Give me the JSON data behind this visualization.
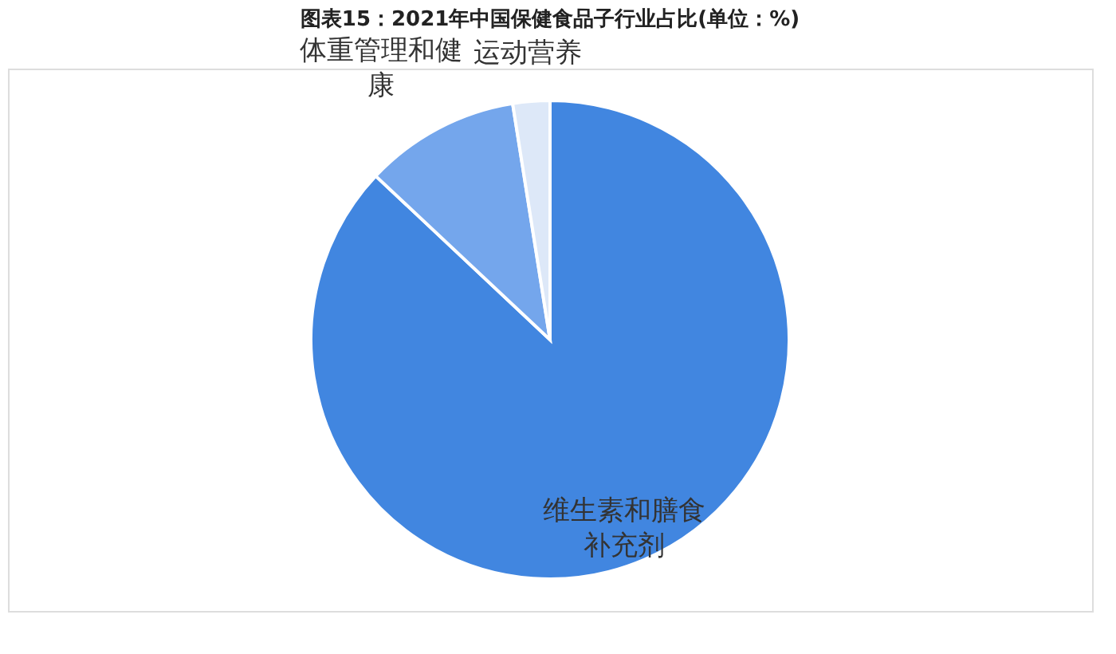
{
  "chart_data": {
    "type": "pie",
    "title": "图表15：2021年中国保健食品子行业占比(单位：%)",
    "categories": [
      "维生素和膳食补充剂",
      "体重管理和健康",
      "运动营养"
    ],
    "values": [
      87,
      10.5,
      2.5
    ],
    "colors": [
      "#4186e0",
      "#74a6ec",
      "#dde8f8"
    ],
    "legend": false
  }
}
